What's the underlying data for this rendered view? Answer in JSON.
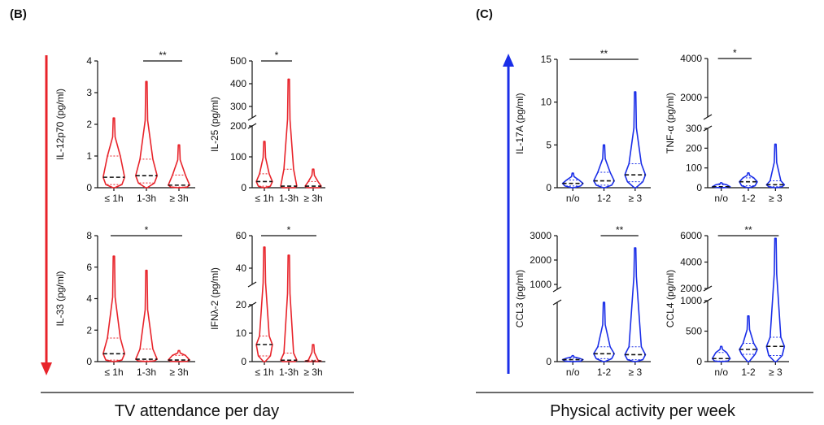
{
  "panels": [
    {
      "label": "(B)",
      "caption": "TV attendance per day"
    },
    {
      "label": "(C)",
      "caption": "Physical activity per week"
    }
  ],
  "chart_data": [
    {
      "type": "violin",
      "ylabel": "IL-12p70 (pg/ml)",
      "color": "#e8232a",
      "categories": [
        "≤ 1h",
        "1-3h",
        "≥ 3h"
      ],
      "violins": [
        {
          "min": 0,
          "q1": 0.1,
          "median": 0.33,
          "q3": 1.0,
          "max": 2.2
        },
        {
          "min": 0,
          "q1": 0.15,
          "median": 0.38,
          "q3": 0.9,
          "max": 3.35
        },
        {
          "min": 0,
          "q1": 0.02,
          "median": 0.08,
          "q3": 0.4,
          "max": 1.35
        }
      ],
      "ylim": [
        0,
        4
      ],
      "yticks": [
        0,
        1,
        2,
        3,
        4
      ],
      "significance": {
        "label": "**",
        "between": [
          1,
          2
        ]
      }
    },
    {
      "type": "violin",
      "ylabel": "IL-25 (pg/ml)",
      "color": "#e8232a",
      "categories": [
        "≤ 1h",
        "1-3h",
        "≥ 3h"
      ],
      "violins": [
        {
          "min": 0,
          "q1": 5,
          "median": 20,
          "q3": 45,
          "max": 150
        },
        {
          "min": 0,
          "q1": 0,
          "median": 5,
          "q3": 60,
          "max": 420
        },
        {
          "min": 0,
          "q1": 0,
          "median": 5,
          "q3": 20,
          "max": 60
        }
      ],
      "ylim": [
        0,
        200
      ],
      "yticks": [
        0,
        100,
        200
      ],
      "upper_ylim": [
        250,
        500
      ],
      "upper_yticks": [
        300,
        400,
        500
      ],
      "significance": {
        "label": "*",
        "between": [
          0,
          1
        ]
      }
    },
    {
      "type": "violin",
      "ylabel": "IL-33 (pg/ml)",
      "color": "#e8232a",
      "categories": [
        "≤ 1h",
        "1-3h",
        "≥ 3h"
      ],
      "violins": [
        {
          "min": 0,
          "q1": 0.1,
          "median": 0.5,
          "q3": 1.5,
          "max": 6.7
        },
        {
          "min": 0,
          "q1": 0.05,
          "median": 0.15,
          "q3": 0.8,
          "max": 5.8
        },
        {
          "min": 0,
          "q1": 0.02,
          "median": 0.1,
          "q3": 0.4,
          "max": 0.7
        }
      ],
      "ylim": [
        0,
        8
      ],
      "yticks": [
        0,
        2,
        4,
        6,
        8
      ],
      "significance": {
        "label": "*",
        "between": [
          0,
          2
        ]
      }
    },
    {
      "type": "violin",
      "ylabel": "IFNλ-2 (pg/ml)",
      "color": "#e8232a",
      "categories": [
        "≤ 1h",
        "1-3h",
        "≥ 3h"
      ],
      "violins": [
        {
          "min": 0,
          "q1": 2,
          "median": 6,
          "q3": 9,
          "max": 53
        },
        {
          "min": 0,
          "q1": 0,
          "median": 0.5,
          "q3": 3,
          "max": 48
        },
        {
          "min": 0,
          "q1": 0,
          "median": 0.2,
          "q3": 0.5,
          "max": 6
        }
      ],
      "ylim": [
        0,
        20
      ],
      "yticks": [
        0,
        10,
        20
      ],
      "upper_ylim": [
        30,
        60
      ],
      "upper_yticks": [
        40,
        60
      ],
      "significance": {
        "label": "*",
        "between": [
          0,
          2
        ]
      }
    },
    {
      "type": "violin",
      "ylabel": "IL-17A (pg/ml)",
      "color": "#1a2ee8",
      "categories": [
        "n/o",
        "1-2",
        "≥ 3"
      ],
      "violins": [
        {
          "min": 0,
          "q1": 0.2,
          "median": 0.5,
          "q3": 0.9,
          "max": 1.7
        },
        {
          "min": 0,
          "q1": 0.3,
          "median": 0.8,
          "q3": 1.8,
          "max": 5
        },
        {
          "min": 0,
          "q1": 0.7,
          "median": 1.5,
          "q3": 2.8,
          "max": 11.2
        }
      ],
      "ylim": [
        0,
        15
      ],
      "yticks": [
        0,
        5,
        10,
        15
      ],
      "significance": {
        "label": "**",
        "between": [
          0,
          2
        ]
      }
    },
    {
      "type": "violin",
      "ylabel": "TNF-α (pg/ml)",
      "color": "#1a2ee8",
      "categories": [
        "n/o",
        "1-2",
        "≥ 3"
      ],
      "violins": [
        {
          "min": 0,
          "q1": 2,
          "median": 5,
          "q3": 15,
          "max": 25
        },
        {
          "min": 0,
          "q1": 10,
          "median": 30,
          "q3": 50,
          "max": 75
        },
        {
          "min": 0,
          "q1": 5,
          "median": 15,
          "q3": 35,
          "max": 220
        }
      ],
      "ylim": [
        0,
        300
      ],
      "yticks": [
        0,
        100,
        200,
        300
      ],
      "upper_ylim": [
        1000,
        4000
      ],
      "upper_yticks": [
        2000,
        4000
      ],
      "significance": {
        "label": "*",
        "between": [
          0,
          1
        ]
      }
    },
    {
      "type": "violin",
      "ylabel": "CCL3 (pg/ml)",
      "color": "#1a2ee8",
      "categories": [
        "n/o",
        "1-2",
        "≥ 3"
      ],
      "violins": [
        {
          "min": 0,
          "q1": 5,
          "median": 20,
          "q3": 35,
          "max": 60
        },
        {
          "min": 0,
          "q1": 30,
          "median": 80,
          "q3": 150,
          "max": 600
        },
        {
          "min": 0,
          "q1": 20,
          "median": 70,
          "q3": 150,
          "max": 2500
        }
      ],
      "ylim": [
        0,
        600
      ],
      "yticks": [
        0
      ],
      "upper_ylim": [
        800,
        3000
      ],
      "upper_yticks": [
        1000,
        2000,
        3000
      ],
      "significance": {
        "label": "**",
        "between": [
          1,
          2
        ]
      }
    },
    {
      "type": "violin",
      "ylabel": "CCL4 (pg/ml)",
      "color": "#1a2ee8",
      "categories": [
        "n/o",
        "1-2",
        "≥ 3"
      ],
      "violins": [
        {
          "min": 0,
          "q1": 10,
          "median": 50,
          "q3": 150,
          "max": 250
        },
        {
          "min": 0,
          "q1": 120,
          "median": 200,
          "q3": 300,
          "max": 750
        },
        {
          "min": 0,
          "q1": 100,
          "median": 250,
          "q3": 400,
          "max": 5800
        }
      ],
      "ylim": [
        0,
        1000
      ],
      "yticks": [
        0,
        500,
        1000
      ],
      "upper_ylim": [
        2000,
        6000
      ],
      "upper_yticks": [
        2000,
        4000,
        6000
      ],
      "significance": {
        "label": "**",
        "between": [
          0,
          2
        ]
      }
    }
  ]
}
